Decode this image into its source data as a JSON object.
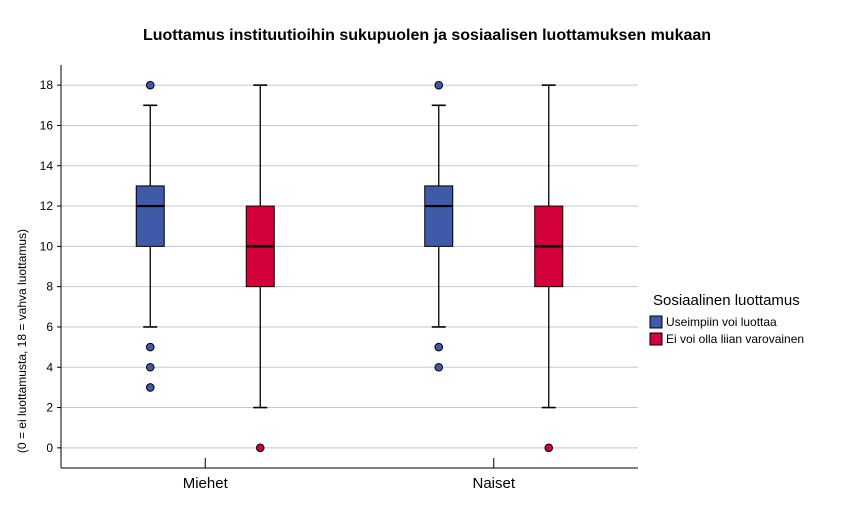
{
  "chart_data": {
    "type": "boxplot",
    "title": "Luottamus instituutioihin sukupuolen ja sosiaalisen luottamuksen mukaan",
    "xlabel": "",
    "ylabel": "(0 = ei luottamusta, 18 = vahva luottamus)",
    "ylim": [
      -1,
      19
    ],
    "yticks": [
      0,
      2,
      4,
      6,
      8,
      10,
      12,
      14,
      16,
      18
    ],
    "grid": true,
    "categories": [
      "Miehet",
      "Naiset"
    ],
    "legend": {
      "title": "Sosiaalinen luottamus",
      "position": "right"
    },
    "series": [
      {
        "name": "Useimpiin voi luottaa",
        "color": "#3f5aa8",
        "boxes": [
          {
            "min": 6,
            "q1": 10,
            "median": 12,
            "q3": 13,
            "max": 17,
            "outliers": [
              3,
              4,
              5,
              18
            ]
          },
          {
            "min": 6,
            "q1": 10,
            "median": 12,
            "q3": 13,
            "max": 17,
            "outliers": [
              4,
              5,
              18
            ]
          }
        ]
      },
      {
        "name": "Ei voi olla liian varovainen",
        "color": "#d3003a",
        "boxes": [
          {
            "min": 2,
            "q1": 8,
            "median": 10,
            "q3": 12,
            "max": 18,
            "outliers": [
              0
            ]
          },
          {
            "min": 2,
            "q1": 8,
            "median": 10,
            "q3": 12,
            "max": 18,
            "outliers": [
              0
            ]
          }
        ]
      }
    ]
  }
}
